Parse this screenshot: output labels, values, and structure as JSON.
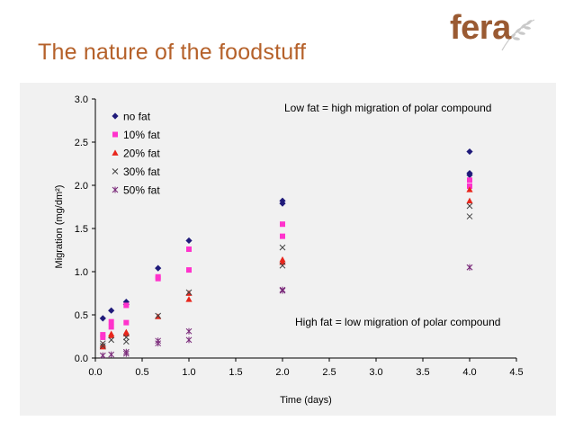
{
  "slide": {
    "title": "The nature of the foodstuff",
    "logo_text": "fera"
  },
  "colors": {
    "title": "#b5612a",
    "logo": "#9a5a32",
    "logo_leaf": "#c9c9c9",
    "no_fat": "#1f1a7a",
    "fat_10": "#ff33cc",
    "fat_20": "#e8261c",
    "fat_30": "#444444",
    "fat_50": "#7a2a7a"
  },
  "chart_data": {
    "type": "scatter",
    "title": "",
    "xlabel": "Time (days)",
    "ylabel": "Migration (mg/dm²)",
    "xlim": [
      0.0,
      4.5
    ],
    "ylim": [
      0.0,
      3.0
    ],
    "xticks": [
      "0.0",
      "0.5",
      "1.0",
      "1.5",
      "2.0",
      "2.5",
      "3.0",
      "3.5",
      "4.0",
      "4.5"
    ],
    "yticks": [
      "0.0",
      "0.5",
      "1.0",
      "1.5",
      "2.0",
      "2.5",
      "3.0"
    ],
    "grid": false,
    "legend_position": "top-left",
    "annotations": [
      "Low fat = high migration of polar compound",
      "High fat = low migration of polar compound"
    ],
    "series": [
      {
        "name": "no fat",
        "marker": "diamond",
        "color": "#1f1a7a",
        "points": [
          [
            0.08,
            0.46
          ],
          [
            0.17,
            0.55
          ],
          [
            0.33,
            0.65
          ],
          [
            0.33,
            0.62
          ],
          [
            0.67,
            1.04
          ],
          [
            1.0,
            1.36
          ],
          [
            2.0,
            1.82
          ],
          [
            2.0,
            1.79
          ],
          [
            4.0,
            2.39
          ],
          [
            4.0,
            2.14
          ],
          [
            4.0,
            2.12
          ]
        ]
      },
      {
        "name": "10% fat",
        "marker": "square",
        "color": "#ff33cc",
        "points": [
          [
            0.08,
            0.27
          ],
          [
            0.08,
            0.24
          ],
          [
            0.17,
            0.42
          ],
          [
            0.17,
            0.36
          ],
          [
            0.33,
            0.61
          ],
          [
            0.33,
            0.41
          ],
          [
            0.67,
            0.94
          ],
          [
            0.67,
            0.92
          ],
          [
            1.0,
            1.26
          ],
          [
            1.0,
            1.02
          ],
          [
            2.0,
            1.55
          ],
          [
            2.0,
            1.41
          ],
          [
            4.0,
            2.06
          ],
          [
            4.0,
            1.99
          ]
        ]
      },
      {
        "name": "20% fat",
        "marker": "triangle",
        "color": "#e8261c",
        "points": [
          [
            0.08,
            0.15
          ],
          [
            0.08,
            0.13
          ],
          [
            0.17,
            0.28
          ],
          [
            0.17,
            0.26
          ],
          [
            0.33,
            0.3
          ],
          [
            0.33,
            0.28
          ],
          [
            0.67,
            0.48
          ],
          [
            1.0,
            0.75
          ],
          [
            1.0,
            0.68
          ],
          [
            2.0,
            1.14
          ],
          [
            2.0,
            1.11
          ],
          [
            4.0,
            1.95
          ],
          [
            4.0,
            1.82
          ]
        ]
      },
      {
        "name": "30% fat",
        "marker": "x",
        "color": "#444444",
        "points": [
          [
            0.08,
            0.17
          ],
          [
            0.08,
            0.14
          ],
          [
            0.17,
            0.21
          ],
          [
            0.33,
            0.24
          ],
          [
            0.33,
            0.19
          ],
          [
            0.67,
            0.49
          ],
          [
            1.0,
            0.76
          ],
          [
            2.0,
            1.28
          ],
          [
            2.0,
            1.07
          ],
          [
            4.0,
            1.76
          ],
          [
            4.0,
            1.64
          ]
        ]
      },
      {
        "name": "50% fat",
        "marker": "star",
        "color": "#7a2a7a",
        "points": [
          [
            0.08,
            0.03
          ],
          [
            0.17,
            0.04
          ],
          [
            0.33,
            0.07
          ],
          [
            0.33,
            0.05
          ],
          [
            0.67,
            0.2
          ],
          [
            0.67,
            0.17
          ],
          [
            1.0,
            0.31
          ],
          [
            1.0,
            0.21
          ],
          [
            2.0,
            0.79
          ],
          [
            2.0,
            0.78
          ],
          [
            4.0,
            1.05
          ],
          [
            4.0,
            1.05
          ]
        ]
      }
    ]
  }
}
